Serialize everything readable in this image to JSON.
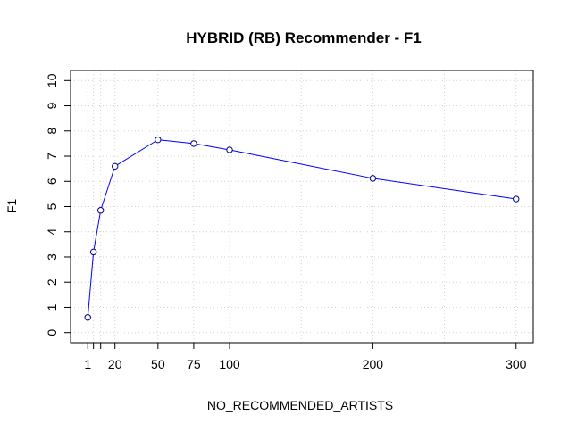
{
  "chart_data": {
    "type": "line",
    "title": "HYBRID (RB) Recommender - F1",
    "xlabel": "NO_RECOMMENDED_ARTISTS",
    "ylabel": "F1",
    "x": [
      1,
      5,
      10,
      20,
      50,
      75,
      100,
      200,
      300
    ],
    "series": [
      {
        "values": [
          0.6,
          3.2,
          4.85,
          6.6,
          7.65,
          7.5,
          7.25,
          6.12,
          5.3
        ]
      }
    ],
    "xticks": [
      1,
      20,
      50,
      75,
      100,
      200,
      300
    ],
    "xticks_minor": [
      5,
      10
    ],
    "xgrid": [
      1,
      5,
      10,
      20,
      50,
      75,
      100,
      150,
      200,
      250,
      300
    ],
    "yticks": [
      0,
      1,
      2,
      3,
      4,
      5,
      6,
      7,
      8,
      9,
      10
    ],
    "xlim": [
      -11,
      312
    ],
    "ylim": [
      -0.4,
      10.4
    ],
    "grid": true,
    "line_color": "#0000ff",
    "marker_color": "#00008b"
  }
}
